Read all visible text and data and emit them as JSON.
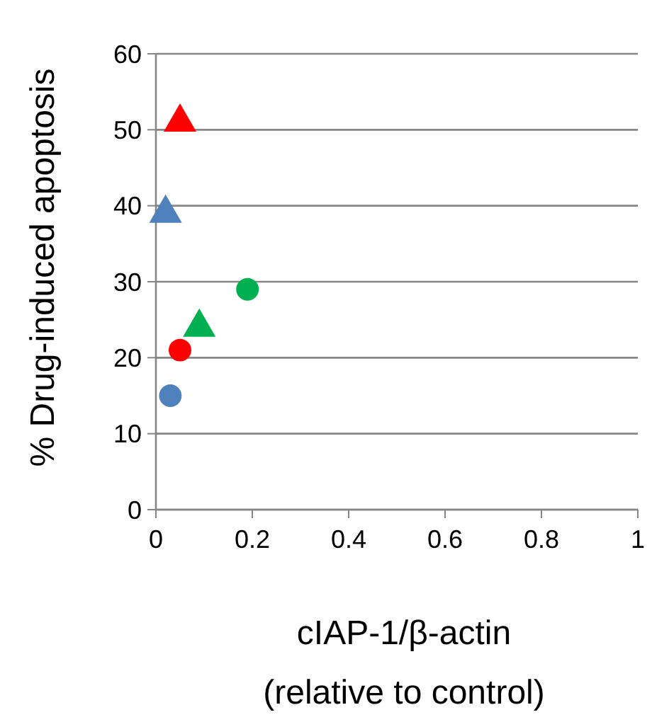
{
  "chart_data": {
    "type": "scatter",
    "xlabel": "cIAP-1/β-actin\n(relative to control)",
    "ylabel": "% Drug-induced apoptosis",
    "xlim": [
      0,
      1
    ],
    "xticks": [
      0,
      0.2,
      0.4,
      0.6,
      0.8,
      1
    ],
    "ylim": [
      0,
      60
    ],
    "yticks": [
      0,
      10,
      20,
      30,
      40,
      50,
      60
    ],
    "grid": "y",
    "series": [
      {
        "marker": "circle",
        "x": [
          0.03,
          0.05,
          0.19
        ],
        "values": [
          15,
          21,
          29
        ],
        "colors": [
          "#4f81bd",
          "#ff0000",
          "#00b050"
        ]
      },
      {
        "marker": "triangle",
        "x": [
          0.02,
          0.05,
          0.09
        ],
        "values": [
          39,
          51,
          24
        ],
        "colors": [
          "#4f81bd",
          "#ff0000",
          "#00b050"
        ]
      }
    ]
  }
}
